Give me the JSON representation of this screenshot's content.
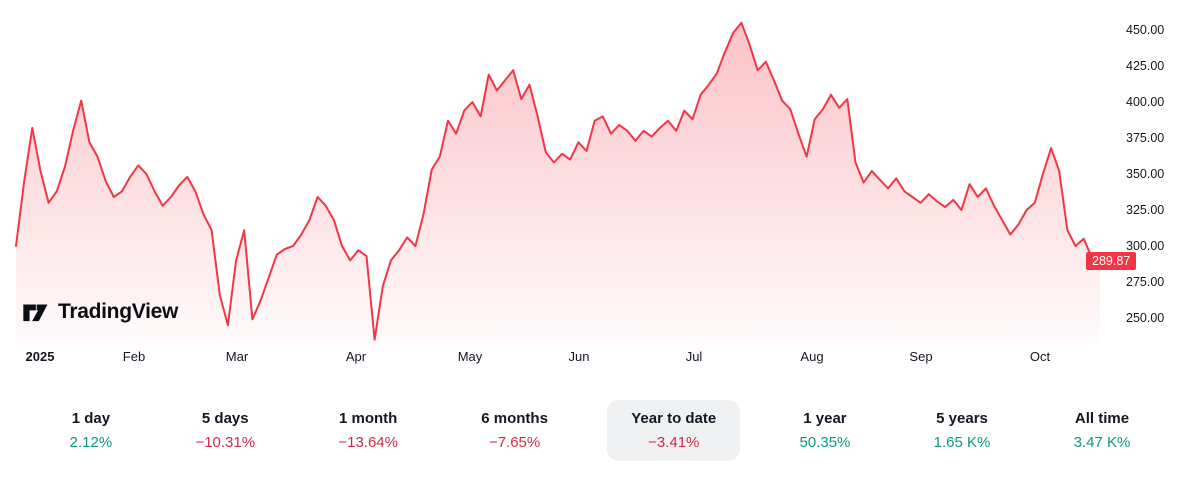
{
  "brand": {
    "name": "TradingView"
  },
  "colors": {
    "up": "#089981",
    "down": "#d02a46",
    "line": "#F23645",
    "area_top": "rgba(242,54,69,0.30)",
    "area_bottom": "rgba(242,54,69,0.02)",
    "badge_bg": "#F23645",
    "text": "#131722",
    "pill_bg": "#f0f1f3"
  },
  "chart_data": {
    "type": "area",
    "x_tick_labels": [
      "2025",
      "Feb",
      "Mar",
      "Apr",
      "May",
      "Jun",
      "Jul",
      "Aug",
      "Sep",
      "Oct"
    ],
    "y_ticks": [
      450,
      425,
      400,
      375,
      350,
      325,
      300,
      275,
      250
    ],
    "y_tick_labels": [
      "450.00",
      "425.00",
      "400.00",
      "375.00",
      "350.00",
      "325.00",
      "300.00",
      "275.00",
      "250.00"
    ],
    "ylim": [
      232,
      465
    ],
    "grid": "off",
    "legend_position": "none",
    "last_price": "289.87",
    "values": [
      300,
      345,
      382,
      352,
      330,
      338,
      355,
      380,
      401,
      372,
      362,
      345,
      334,
      338,
      348,
      356,
      350,
      338,
      328,
      334,
      342,
      348,
      338,
      322,
      311,
      266,
      245,
      290,
      311,
      249,
      262,
      278,
      294,
      298,
      300,
      308,
      318,
      334,
      328,
      318,
      300,
      290,
      297,
      293,
      235,
      272,
      290,
      297,
      306,
      300,
      322,
      353,
      362,
      387,
      378,
      394,
      400,
      390,
      419,
      408,
      415,
      422,
      402,
      412,
      390,
      365,
      358,
      364,
      360,
      372,
      366,
      387,
      390,
      378,
      384,
      380,
      373,
      380,
      376,
      382,
      387,
      380,
      394,
      388,
      405,
      412,
      420,
      435,
      448,
      455,
      440,
      422,
      428,
      415,
      401,
      395,
      378,
      362,
      388,
      395,
      405,
      396,
      402,
      358,
      344,
      352,
      346,
      340,
      347,
      338,
      334,
      330,
      336,
      331,
      327,
      332,
      325,
      343,
      334,
      340,
      328,
      318,
      308,
      315,
      325,
      330,
      350,
      368,
      352,
      311,
      300,
      305,
      292,
      289.87
    ]
  },
  "periods": [
    {
      "label": "1 day",
      "change": "2.12%",
      "direction": "up",
      "selected": false
    },
    {
      "label": "5 days",
      "change": "−10.31%",
      "direction": "down",
      "selected": false
    },
    {
      "label": "1 month",
      "change": "−13.64%",
      "direction": "down",
      "selected": false
    },
    {
      "label": "6 months",
      "change": "−7.65%",
      "direction": "down",
      "selected": false
    },
    {
      "label": "Year to date",
      "change": "−3.41%",
      "direction": "down",
      "selected": true
    },
    {
      "label": "1 year",
      "change": "50.35%",
      "direction": "up",
      "selected": false
    },
    {
      "label": "5 years",
      "change": "1.65 K%",
      "direction": "up",
      "selected": false
    },
    {
      "label": "All time",
      "change": "3.47 K%",
      "direction": "up",
      "selected": false
    }
  ]
}
